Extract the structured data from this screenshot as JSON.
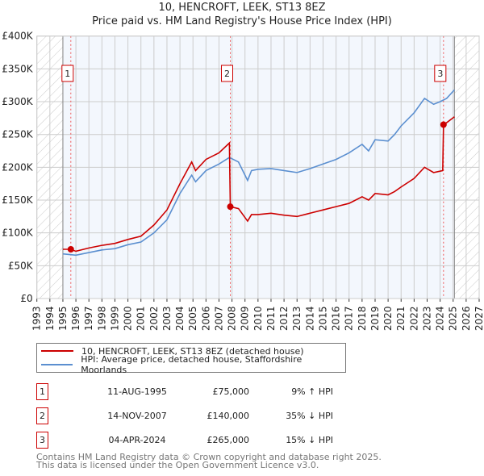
{
  "chart_data": {
    "type": "line",
    "title": "10, HENCROFT, LEEK, ST13 8EZ",
    "subtitle": "Price paid vs. HM Land Registry's House Price Index (HPI)",
    "xlim": [
      1993,
      2027
    ],
    "ylim": [
      0,
      400000
    ],
    "x_ticks": [
      "1993",
      "1994",
      "1995",
      "1996",
      "1997",
      "1998",
      "1999",
      "2000",
      "2001",
      "2002",
      "2003",
      "2004",
      "2005",
      "2006",
      "2007",
      "2008",
      "2009",
      "2010",
      "2011",
      "2012",
      "2013",
      "2014",
      "2015",
      "2016",
      "2017",
      "2018",
      "2019",
      "2020",
      "2021",
      "2022",
      "2023",
      "2024",
      "2025",
      "2026",
      "2027"
    ],
    "y_ticks": [
      {
        "v": 0,
        "label": "£0"
      },
      {
        "v": 50000,
        "label": "£50K"
      },
      {
        "v": 100000,
        "label": "£100K"
      },
      {
        "v": 150000,
        "label": "£150K"
      },
      {
        "v": 200000,
        "label": "£200K"
      },
      {
        "v": 250000,
        "label": "£250K"
      },
      {
        "v": 300000,
        "label": "£300K"
      },
      {
        "v": 350000,
        "label": "£350K"
      },
      {
        "v": 400000,
        "label": "£400K"
      }
    ],
    "grid": true,
    "data_range": [
      1995,
      2025.1
    ],
    "series": [
      {
        "name": "10, HENCROFT, LEEK, ST13 8EZ (detached house)",
        "color": "#cc0000",
        "x": [
          1995,
          1995.6,
          1996,
          1997,
          1998,
          1999,
          2000,
          2001,
          2002,
          2003,
          2004,
          2004.9,
          2005.2,
          2006,
          2007,
          2007.8,
          2007.87,
          2008.5,
          2009.2,
          2009.5,
          2010,
          2011,
          2012,
          2013,
          2014,
          2015,
          2016,
          2017,
          2018,
          2018.5,
          2019,
          2020,
          2020.5,
          2021,
          2022,
          2022.8,
          2023.5,
          2024.2,
          2024.26,
          2024.5,
          2025.1
        ],
        "y": [
          75000,
          75000,
          72000,
          77000,
          81000,
          84000,
          90000,
          95000,
          112000,
          135000,
          175000,
          208000,
          195000,
          212000,
          222000,
          237000,
          140000,
          137000,
          118000,
          128000,
          128000,
          130000,
          127000,
          125000,
          130000,
          135000,
          140000,
          145000,
          155000,
          150000,
          160000,
          158000,
          163000,
          170000,
          183000,
          200000,
          192000,
          195000,
          265000,
          268000,
          277000
        ]
      },
      {
        "name": "HPI: Average price, detached house, Staffordshire Moorlands",
        "color": "#5b8fd0",
        "x": [
          1995,
          1996,
          1997,
          1998,
          1999,
          2000,
          2001,
          2002,
          2003,
          2004,
          2004.9,
          2005.2,
          2006,
          2007,
          2007.8,
          2008.5,
          2009.2,
          2009.5,
          2010,
          2011,
          2012,
          2013,
          2014,
          2015,
          2016,
          2017,
          2018,
          2018.5,
          2019,
          2020,
          2020.5,
          2021,
          2022,
          2022.8,
          2023.5,
          2024,
          2024.5,
          2025.1
        ],
        "y": [
          68000,
          66000,
          70000,
          74000,
          76000,
          82000,
          86000,
          100000,
          120000,
          160000,
          188000,
          178000,
          195000,
          205000,
          215000,
          208000,
          180000,
          195000,
          197000,
          198000,
          195000,
          192000,
          198000,
          205000,
          212000,
          222000,
          235000,
          225000,
          242000,
          240000,
          250000,
          263000,
          283000,
          305000,
          296000,
          300000,
          305000,
          318000
        ]
      }
    ],
    "sales": [
      {
        "label": "1",
        "x": 1995.61,
        "y": 75000,
        "date": "11-AUG-1995",
        "price": "£75,000",
        "hpi": "9% ↑ HPI"
      },
      {
        "label": "2",
        "x": 2007.87,
        "y": 140000,
        "date": "14-NOV-2007",
        "price": "£140,000",
        "hpi": "35% ↓ HPI"
      },
      {
        "label": "3",
        "x": 2024.26,
        "y": 265000,
        "date": "04-APR-2024",
        "price": "£265,000",
        "hpi": "15% ↓ HPI"
      }
    ]
  },
  "footer": {
    "line1": "Contains HM Land Registry data © Crown copyright and database right 2025.",
    "line2": "This data is licensed under the Open Government Licence v3.0."
  }
}
